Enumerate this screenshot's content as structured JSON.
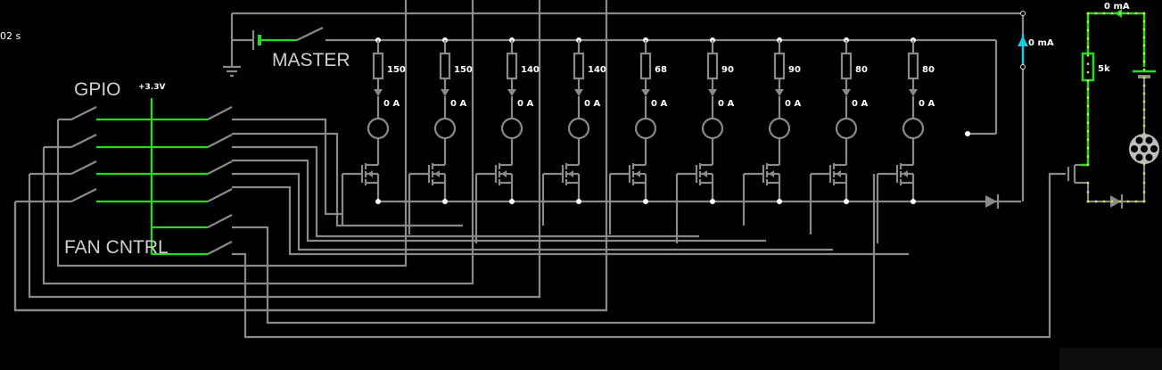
{
  "time_label": "02 s",
  "master_label": "MASTER",
  "gpio_label": "GPIO",
  "fan_label": "FAN CNTRL",
  "supply_label": "+3.3V",
  "meter_top": "0 mA",
  "meter_side": "0 mA",
  "fan_resistor": "5k",
  "branches": [
    {
      "resistor": "150",
      "current": "0 A"
    },
    {
      "resistor": "150",
      "current": "0 A"
    },
    {
      "resistor": "140",
      "current": "0 A"
    },
    {
      "resistor": "140",
      "current": "0 A"
    },
    {
      "resistor": "68",
      "current": "0 A"
    },
    {
      "resistor": "90",
      "current": "0 A"
    },
    {
      "resistor": "90",
      "current": "0 A"
    },
    {
      "resistor": "80",
      "current": "0 A"
    },
    {
      "resistor": "80",
      "current": "0 A"
    }
  ],
  "colors": {
    "wire": "#8a8a8a",
    "live": "#22dd22",
    "current_dots": "#e0e040",
    "meter": "#22c8e0"
  }
}
